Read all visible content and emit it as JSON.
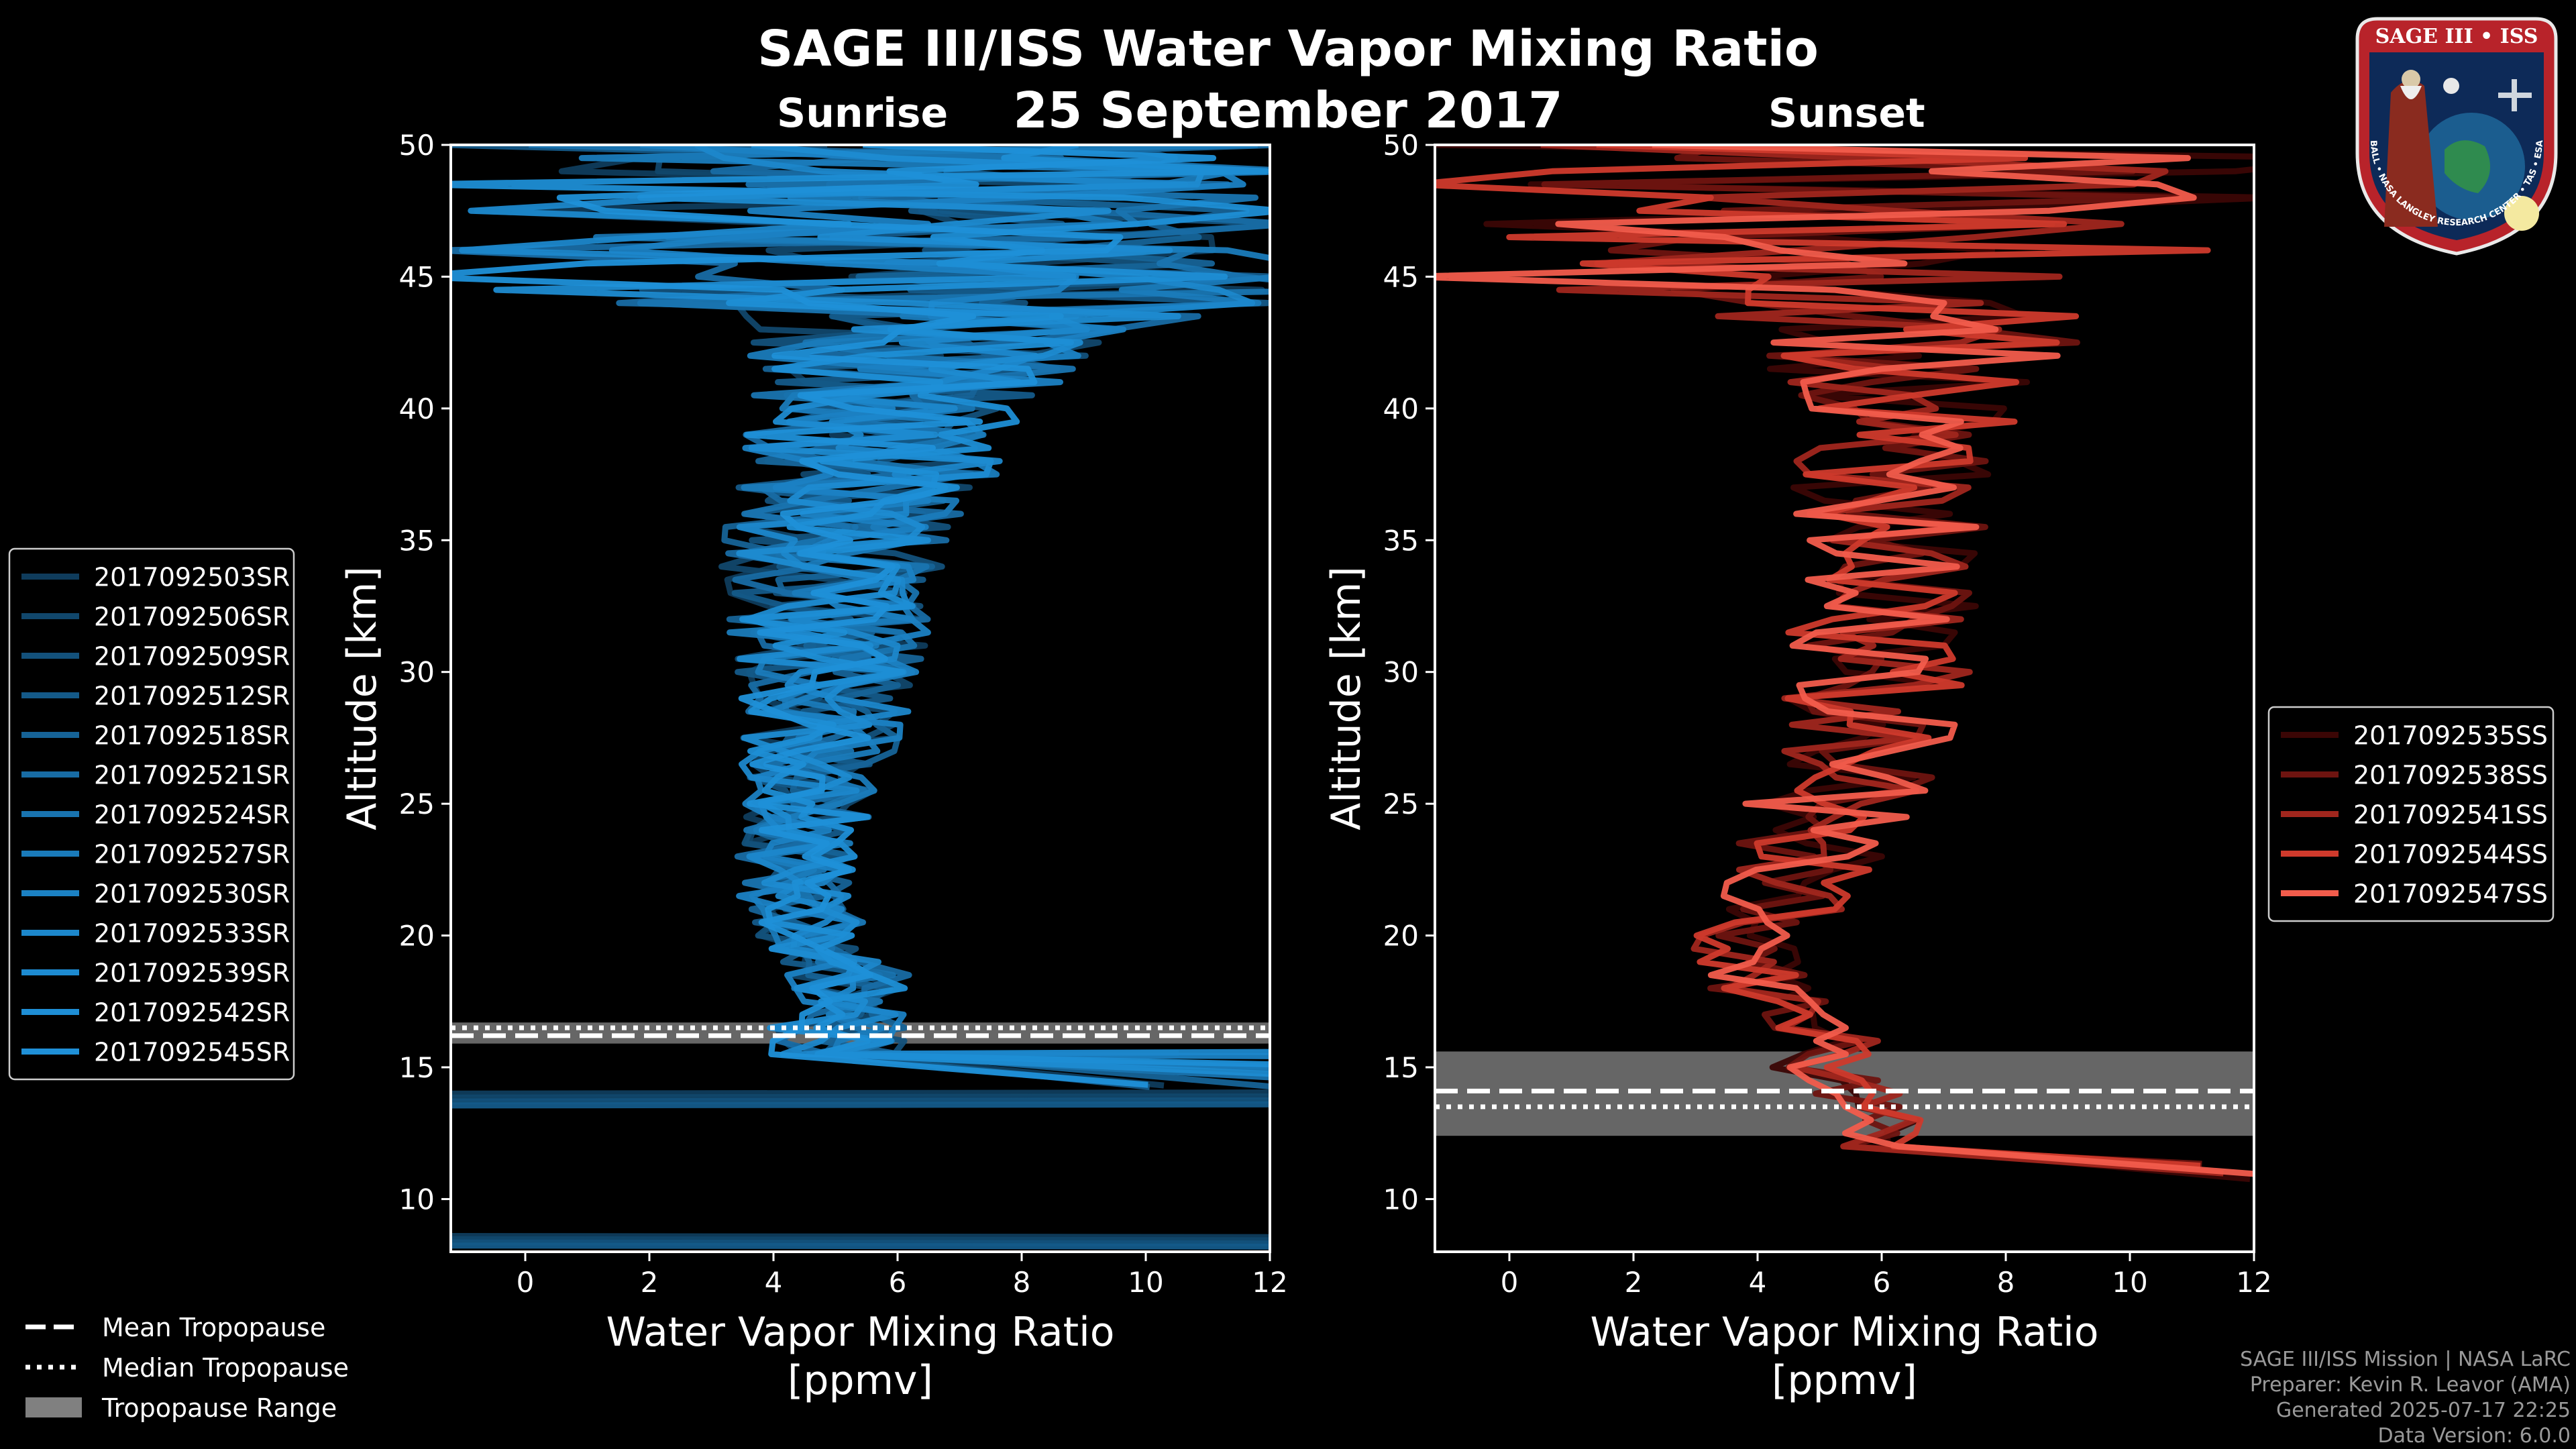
{
  "title": "SAGE III/ISS Water Vapor Mixing Ratio",
  "date": "25 September 2017",
  "footer": {
    "line1": "SAGE III/ISS Mission | NASA LaRC",
    "line2": "Preparer: Kevin R. Leavor (AMA)",
    "line3": "Generated 2025-07-17 22:25",
    "line4": "Data Version: 6.0.0"
  },
  "logo": {
    "top_text": "SAGE III • ISS",
    "ring_text": "BALL • NASA LANGLEY RESEARCH CENTER • TAS • ESA"
  },
  "colors": {
    "background": "#000000",
    "sunrise": "#1f8fd6",
    "sunset": "#f05545",
    "tropopause_range": "#808080"
  },
  "tropopause_legend": [
    {
      "label": "Mean Tropopause",
      "style": "dashed"
    },
    {
      "label": "Median Tropopause",
      "style": "dotted"
    },
    {
      "label": "Tropopause Range",
      "style": "patch"
    }
  ],
  "chart_data": [
    {
      "type": "line",
      "panel": "Sunrise",
      "title": "Sunrise",
      "xlabel": "Water Vapor Mixing Ratio [ppmv]",
      "ylabel": "Altitude [km]",
      "xlim": [
        -1.2,
        12
      ],
      "ylim": [
        8,
        50
      ],
      "xticks": [
        0,
        2,
        4,
        6,
        8,
        10,
        12
      ],
      "yticks": [
        10,
        15,
        20,
        25,
        30,
        35,
        40,
        45,
        50
      ],
      "legend_position": "left",
      "series": [
        {
          "name": "2017092503SR",
          "color": "#0f3c5c"
        },
        {
          "name": "2017092506SR",
          "color": "#11476c"
        },
        {
          "name": "2017092509SR",
          "color": "#13517b"
        },
        {
          "name": "2017092512SR",
          "color": "#145a89"
        },
        {
          "name": "2017092518SR",
          "color": "#166397"
        },
        {
          "name": "2017092521SR",
          "color": "#186ca4"
        },
        {
          "name": "2017092524SR",
          "color": "#1974b0"
        },
        {
          "name": "2017092527SR",
          "color": "#1a7bba"
        },
        {
          "name": "2017092530SR",
          "color": "#1b81c3"
        },
        {
          "name": "2017092533SR",
          "color": "#1c87cb"
        },
        {
          "name": "2017092539SR",
          "color": "#1d8bd1"
        },
        {
          "name": "2017092542SR",
          "color": "#1e8ed5"
        },
        {
          "name": "2017092545SR",
          "color": "#1f90d8"
        }
      ],
      "tropopause": {
        "mean": 16.2,
        "median": 16.5,
        "min": 15.9,
        "max": 16.7
      },
      "profile_shape": {
        "center": [
          [
            15.5,
            5.0
          ],
          [
            17,
            5.0
          ],
          [
            18.5,
            5.2
          ],
          [
            20,
            4.6
          ],
          [
            22,
            4.3
          ],
          [
            25,
            4.5
          ],
          [
            28,
            4.8
          ],
          [
            32,
            4.9
          ],
          [
            35,
            5.0
          ],
          [
            38,
            5.6
          ],
          [
            42,
            6.2
          ],
          [
            44,
            7.0
          ],
          [
            46,
            7.0
          ],
          [
            50,
            6.0
          ]
        ],
        "spread": [
          [
            15.5,
            1.2
          ],
          [
            20,
            0.9
          ],
          [
            25,
            1.1
          ],
          [
            30,
            1.5
          ],
          [
            35,
            1.9
          ],
          [
            40,
            2.3
          ],
          [
            43,
            3.2
          ],
          [
            44,
            5.5
          ],
          [
            50,
            6.5
          ]
        ]
      }
    },
    {
      "type": "line",
      "panel": "Sunset",
      "title": "Sunset",
      "xlabel": "Water Vapor Mixing Ratio [ppmv]",
      "ylabel": "Altitude [km]",
      "xlim": [
        -1.2,
        12
      ],
      "ylim": [
        8,
        50
      ],
      "xticks": [
        0,
        2,
        4,
        6,
        8,
        10,
        12
      ],
      "yticks": [
        10,
        15,
        20,
        25,
        30,
        35,
        40,
        45,
        50
      ],
      "legend_position": "right",
      "series": [
        {
          "name": "2017092535SS",
          "color": "#3b0605"
        },
        {
          "name": "2017092538SS",
          "color": "#6e1410"
        },
        {
          "name": "2017092541SS",
          "color": "#a0261d"
        },
        {
          "name": "2017092544SS",
          "color": "#cf3a2c"
        },
        {
          "name": "2017092547SS",
          "color": "#f25c4c"
        }
      ],
      "tropopause": {
        "mean": 14.1,
        "median": 13.5,
        "min": 12.4,
        "max": 15.6
      },
      "profile_shape": {
        "center": [
          [
            13.5,
            6.0
          ],
          [
            15,
            5.0
          ],
          [
            16,
            5.2
          ],
          [
            18,
            4.0
          ],
          [
            20,
            3.9
          ],
          [
            22,
            4.6
          ],
          [
            25,
            5.2
          ],
          [
            28,
            5.8
          ],
          [
            30,
            6.0
          ],
          [
            35,
            6.0
          ],
          [
            38,
            6.3
          ],
          [
            42,
            6.5
          ],
          [
            44,
            6.0
          ],
          [
            50,
            5.0
          ]
        ],
        "spread": [
          [
            13.5,
            0.8
          ],
          [
            18,
            0.9
          ],
          [
            25,
            1.4
          ],
          [
            30,
            1.5
          ],
          [
            35,
            1.6
          ],
          [
            40,
            2.0
          ],
          [
            43,
            3.0
          ],
          [
            44.5,
            5.5
          ],
          [
            50,
            6.5
          ]
        ]
      }
    }
  ]
}
